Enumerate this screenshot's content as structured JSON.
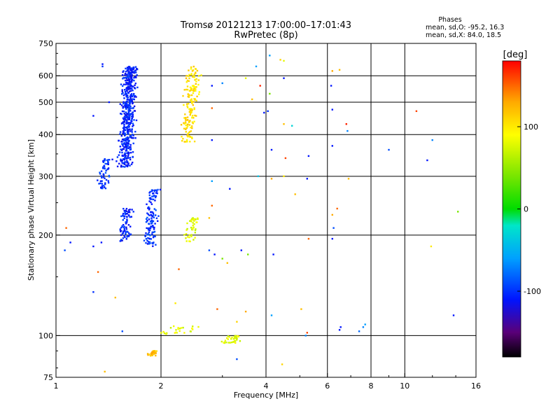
{
  "chart_data": {
    "type": "scatter",
    "title": "Tromsø 20121213 17:00:00–17:01:43",
    "subtitle": "RwPretec (8p)",
    "xlabel": "Frequency [MHz]",
    "ylabel": "Stationary phase Virtual Height [km]",
    "x_scale": "log",
    "y_scale": "log",
    "xlim": [
      1,
      16
    ],
    "ylim": [
      75,
      750
    ],
    "x_ticks": [
      1,
      2,
      4,
      6,
      8,
      10,
      16
    ],
    "x_tick_labels": [
      "1",
      "2",
      "4",
      "6",
      "8",
      "10",
      "16"
    ],
    "x_gridlines": [
      2,
      4,
      6,
      8,
      10
    ],
    "y_ticks": [
      75,
      100,
      200,
      300,
      400,
      500,
      600,
      750
    ],
    "y_tick_labels": [
      "75",
      "100",
      "200",
      "300",
      "400",
      "500",
      "600",
      "750"
    ],
    "y_gridlines": [
      100,
      200,
      300,
      400,
      500,
      600
    ],
    "grid": true,
    "phases_box": {
      "heading": "Phases",
      "line1": "mean, sd,O:  -95.2, 16.3",
      "line2": "mean, sd,X:   84.0, 18.5"
    },
    "colorbar": {
      "label": "[deg]",
      "range": [
        -180,
        180
      ],
      "tick_values": [
        100,
        0,
        -100
      ],
      "tick_labels": [
        "100",
        "0",
        "-100"
      ],
      "colormap": "rainbow (black→purple→blue→cyan→green→yellow→orange→red)"
    },
    "clusters": [
      {
        "f": [
          1.5,
          1.72
        ],
        "h": [
          320,
          640
        ],
        "n": 520,
        "phase": -105
      },
      {
        "f": [
          1.3,
          1.45
        ],
        "h": [
          275,
          340
        ],
        "n": 60,
        "phase": -100
      },
      {
        "f": [
          1.5,
          1.68
        ],
        "h": [
          190,
          240
        ],
        "n": 80,
        "phase": -105
      },
      {
        "f": [
          1.78,
          1.98
        ],
        "h": [
          185,
          275
        ],
        "n": 120,
        "phase": -100
      },
      {
        "f": [
          2.28,
          2.6
        ],
        "h": [
          380,
          640
        ],
        "n": 160,
        "phase": 105
      },
      {
        "f": [
          2.3,
          2.6
        ],
        "h": [
          190,
          225
        ],
        "n": 45,
        "phase": 80
      },
      {
        "f": [
          1.8,
          2.0
        ],
        "h": [
          87,
          90
        ],
        "n": 30,
        "phase": 120
      },
      {
        "f": [
          1.9,
          2.7
        ],
        "h": [
          101,
          107
        ],
        "n": 25,
        "phase": 80
      },
      {
        "f": [
          2.9,
          3.5
        ],
        "h": [
          95,
          100
        ],
        "n": 40,
        "phase": 80
      }
    ],
    "scattered_points": [
      {
        "f": 1.36,
        "h": 650,
        "phase": -110
      },
      {
        "f": 1.36,
        "h": 640,
        "phase": -100
      },
      {
        "f": 1.28,
        "h": 455,
        "phase": -110
      },
      {
        "f": 1.1,
        "h": 190,
        "phase": -110
      },
      {
        "f": 1.06,
        "h": 180,
        "phase": -90
      },
      {
        "f": 1.07,
        "h": 210,
        "phase": 150
      },
      {
        "f": 1.28,
        "h": 185,
        "phase": -110
      },
      {
        "f": 1.35,
        "h": 190,
        "phase": -110
      },
      {
        "f": 1.32,
        "h": 155,
        "phase": 150
      },
      {
        "f": 1.28,
        "h": 135,
        "phase": -100
      },
      {
        "f": 1.38,
        "h": 78,
        "phase": 120
      },
      {
        "f": 1.55,
        "h": 103,
        "phase": -90
      },
      {
        "f": 1.48,
        "h": 130,
        "phase": 120
      },
      {
        "f": 1.42,
        "h": 500,
        "phase": -110
      },
      {
        "f": 3.0,
        "h": 570,
        "phase": -70
      },
      {
        "f": 2.8,
        "h": 560,
        "phase": -110
      },
      {
        "f": 2.8,
        "h": 385,
        "phase": -110
      },
      {
        "f": 2.8,
        "h": 480,
        "phase": 150
      },
      {
        "f": 2.8,
        "h": 290,
        "phase": -60
      },
      {
        "f": 3.15,
        "h": 275,
        "phase": -110
      },
      {
        "f": 2.8,
        "h": 245,
        "phase": 150
      },
      {
        "f": 2.75,
        "h": 225,
        "phase": 120
      },
      {
        "f": 2.75,
        "h": 180,
        "phase": -90
      },
      {
        "f": 2.85,
        "h": 175,
        "phase": -110
      },
      {
        "f": 3.0,
        "h": 170,
        "phase": 40
      },
      {
        "f": 3.1,
        "h": 165,
        "phase": 120
      },
      {
        "f": 3.4,
        "h": 180,
        "phase": -110
      },
      {
        "f": 3.55,
        "h": 175,
        "phase": 40
      },
      {
        "f": 2.25,
        "h": 158,
        "phase": 150
      },
      {
        "f": 2.2,
        "h": 125,
        "phase": 100
      },
      {
        "f": 2.9,
        "h": 120,
        "phase": 150
      },
      {
        "f": 3.5,
        "h": 118,
        "phase": 130
      },
      {
        "f": 3.3,
        "h": 110,
        "phase": 110
      },
      {
        "f": 3.3,
        "h": 85,
        "phase": -90
      },
      {
        "f": 3.65,
        "h": 510,
        "phase": 120
      },
      {
        "f": 3.75,
        "h": 640,
        "phase": -60
      },
      {
        "f": 3.85,
        "h": 560,
        "phase": 170
      },
      {
        "f": 3.8,
        "h": 300,
        "phase": -40
      },
      {
        "f": 3.5,
        "h": 590,
        "phase": 80
      },
      {
        "f": 4.1,
        "h": 690,
        "phase": -60
      },
      {
        "f": 4.4,
        "h": 670,
        "phase": 110
      },
      {
        "f": 4.5,
        "h": 665,
        "phase": 80
      },
      {
        "f": 4.5,
        "h": 590,
        "phase": -110
      },
      {
        "f": 4.1,
        "h": 530,
        "phase": 40
      },
      {
        "f": 4.05,
        "h": 470,
        "phase": -100
      },
      {
        "f": 3.95,
        "h": 465,
        "phase": -110
      },
      {
        "f": 4.5,
        "h": 430,
        "phase": 120
      },
      {
        "f": 4.75,
        "h": 425,
        "phase": -30
      },
      {
        "f": 4.15,
        "h": 360,
        "phase": -110
      },
      {
        "f": 4.55,
        "h": 340,
        "phase": 160
      },
      {
        "f": 4.5,
        "h": 300,
        "phase": 100
      },
      {
        "f": 4.15,
        "h": 295,
        "phase": 130
      },
      {
        "f": 4.85,
        "h": 265,
        "phase": 120
      },
      {
        "f": 4.2,
        "h": 175,
        "phase": -110
      },
      {
        "f": 4.15,
        "h": 115,
        "phase": -60
      },
      {
        "f": 4.45,
        "h": 82,
        "phase": 110
      },
      {
        "f": 5.2,
        "h": 100,
        "phase": -70
      },
      {
        "f": 5.25,
        "h": 102,
        "phase": 160
      },
      {
        "f": 5.05,
        "h": 120,
        "phase": 120
      },
      {
        "f": 5.3,
        "h": 345,
        "phase": -110
      },
      {
        "f": 5.25,
        "h": 295,
        "phase": -110
      },
      {
        "f": 5.3,
        "h": 195,
        "phase": 150
      },
      {
        "f": 6.2,
        "h": 620,
        "phase": 130
      },
      {
        "f": 6.5,
        "h": 625,
        "phase": 120
      },
      {
        "f": 6.15,
        "h": 560,
        "phase": -110
      },
      {
        "f": 6.2,
        "h": 475,
        "phase": -110
      },
      {
        "f": 6.8,
        "h": 430,
        "phase": 170
      },
      {
        "f": 6.85,
        "h": 410,
        "phase": -70
      },
      {
        "f": 6.2,
        "h": 370,
        "phase": -110
      },
      {
        "f": 6.9,
        "h": 295,
        "phase": 120
      },
      {
        "f": 6.4,
        "h": 240,
        "phase": 150
      },
      {
        "f": 6.2,
        "h": 230,
        "phase": 130
      },
      {
        "f": 6.25,
        "h": 210,
        "phase": -90
      },
      {
        "f": 6.2,
        "h": 195,
        "phase": -110
      },
      {
        "f": 6.5,
        "h": 104,
        "phase": -110
      },
      {
        "f": 6.55,
        "h": 106,
        "phase": -110
      },
      {
        "f": 7.4,
        "h": 103,
        "phase": -80
      },
      {
        "f": 7.6,
        "h": 106,
        "phase": -70
      },
      {
        "f": 7.7,
        "h": 108,
        "phase": -60
      },
      {
        "f": 9.0,
        "h": 360,
        "phase": -90
      },
      {
        "f": 10.8,
        "h": 470,
        "phase": 160
      },
      {
        "f": 11.6,
        "h": 335,
        "phase": -110
      },
      {
        "f": 12.0,
        "h": 385,
        "phase": -70
      },
      {
        "f": 11.9,
        "h": 185,
        "phase": 100
      },
      {
        "f": 13.8,
        "h": 115,
        "phase": -110
      },
      {
        "f": 14.2,
        "h": 235,
        "phase": 40
      }
    ]
  }
}
